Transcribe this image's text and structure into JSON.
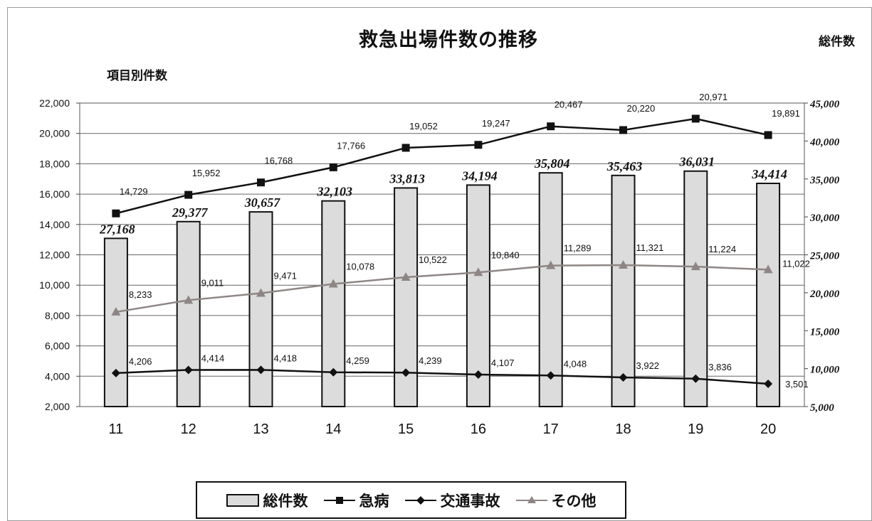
{
  "chart_data": {
    "type": "bar",
    "title": "救急出場件数の推移",
    "ylabel_left": "項目別件数",
    "ylabel_right": "総件数",
    "categories": [
      "11",
      "12",
      "13",
      "14",
      "15",
      "16",
      "17",
      "18",
      "19",
      "20"
    ],
    "ylim_left": [
      2000,
      22000
    ],
    "ylim_right": [
      5000,
      45000
    ],
    "left_ticks": [
      "2,000",
      "4,000",
      "6,000",
      "8,000",
      "10,000",
      "12,000",
      "14,000",
      "16,000",
      "18,000",
      "20,000",
      "22,000"
    ],
    "right_ticks": [
      "5,000",
      "10,000",
      "15,000",
      "20,000",
      "25,000",
      "30,000",
      "35,000",
      "40,000",
      "45,000"
    ],
    "grid": true,
    "legend_position": "bottom",
    "series": [
      {
        "name": "総件数",
        "type": "bar",
        "axis": "right",
        "values": [
          27168,
          29377,
          30657,
          32103,
          33813,
          34194,
          35804,
          35463,
          36031,
          34414
        ],
        "labels": [
          "27,168",
          "29,377",
          "30,657",
          "32,103",
          "33,813",
          "34,194",
          "35,804",
          "35,463",
          "36,031",
          "34,414"
        ]
      },
      {
        "name": "急病",
        "type": "line",
        "axis": "left",
        "color": "#111111",
        "marker": "square",
        "values": [
          14729,
          15952,
          16768,
          17766,
          19052,
          19247,
          20467,
          20220,
          20971,
          19891
        ],
        "labels": [
          "14,729",
          "15,952",
          "16,768",
          "17,766",
          "19,052",
          "19,247",
          "20,467",
          "20,220",
          "20,971",
          "19,891"
        ]
      },
      {
        "name": "交通事故",
        "type": "line",
        "axis": "left",
        "color": "#111111",
        "marker": "diamond",
        "values": [
          4206,
          4414,
          4418,
          4259,
          4239,
          4107,
          4048,
          3922,
          3836,
          3501
        ],
        "labels": [
          "4,206",
          "4,414",
          "4,418",
          "4,259",
          "4,239",
          "4,107",
          "4,048",
          "3,922",
          "3,836",
          "3,501"
        ]
      },
      {
        "name": "その他",
        "type": "line",
        "axis": "left",
        "color": "#8f8585",
        "marker": "triangle",
        "values": [
          8233,
          9011,
          9471,
          10078,
          10522,
          10840,
          11289,
          11321,
          11224,
          11022
        ],
        "labels": [
          "8,233",
          "9,011",
          "9,471",
          "10,078",
          "10,522",
          "10,840",
          "11,289",
          "11,321",
          "11,224",
          "11,022"
        ]
      }
    ]
  }
}
